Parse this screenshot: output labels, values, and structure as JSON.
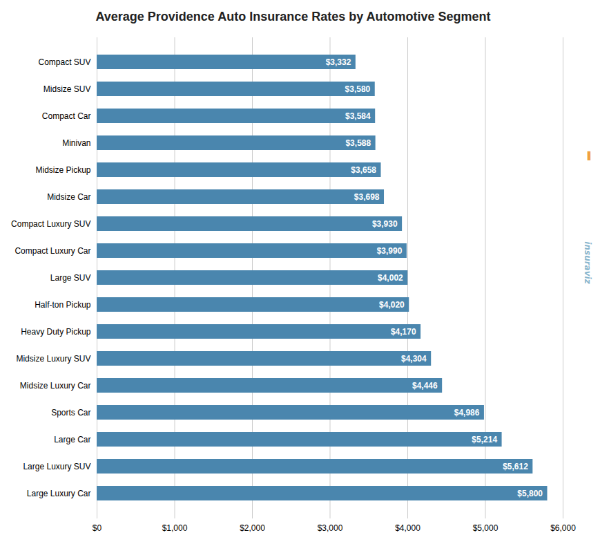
{
  "chart_data": {
    "type": "bar",
    "orientation": "horizontal",
    "title": "Average Providence Auto Insurance Rates by Automotive Segment",
    "categories": [
      "Large Luxury Car",
      "Large Luxury SUV",
      "Large Car",
      "Sports Car",
      "Midsize Luxury Car",
      "Midsize Luxury SUV",
      "Heavy Duty Pickup",
      "Half-ton Pickup",
      "Large SUV",
      "Compact Luxury Car",
      "Compact Luxury SUV",
      "Midsize Car",
      "Midsize Pickup",
      "Minivan",
      "Compact Car",
      "Midsize SUV",
      "Compact SUV"
    ],
    "values": [
      5800,
      5612,
      5214,
      4986,
      4446,
      4304,
      4170,
      4020,
      4002,
      3990,
      3930,
      3698,
      3658,
      3588,
      3584,
      3580,
      3332
    ],
    "value_labels": [
      "$5,800",
      "$5,612",
      "$5,214",
      "$4,986",
      "$4,446",
      "$4,304",
      "$4,170",
      "$4,020",
      "$4,002",
      "$3,990",
      "$3,930",
      "$3,698",
      "$3,658",
      "$3,588",
      "$3,584",
      "$3,580",
      "$3,332"
    ],
    "data_labels": true,
    "color": "#4a86ae",
    "xlim": [
      0,
      6000
    ],
    "xticks": [
      {
        "value": 0,
        "label": "$0"
      },
      {
        "value": 1000,
        "label": "$1,000"
      },
      {
        "value": 2000,
        "label": "$2,000"
      },
      {
        "value": 3000,
        "label": "$3,000"
      },
      {
        "value": 4000,
        "label": "$4,000"
      },
      {
        "value": 5000,
        "label": "$5,000"
      },
      {
        "value": 6000,
        "label": "$6,000"
      }
    ],
    "grid": true,
    "annotations": [
      "insuraviz",
      "▐"
    ]
  }
}
